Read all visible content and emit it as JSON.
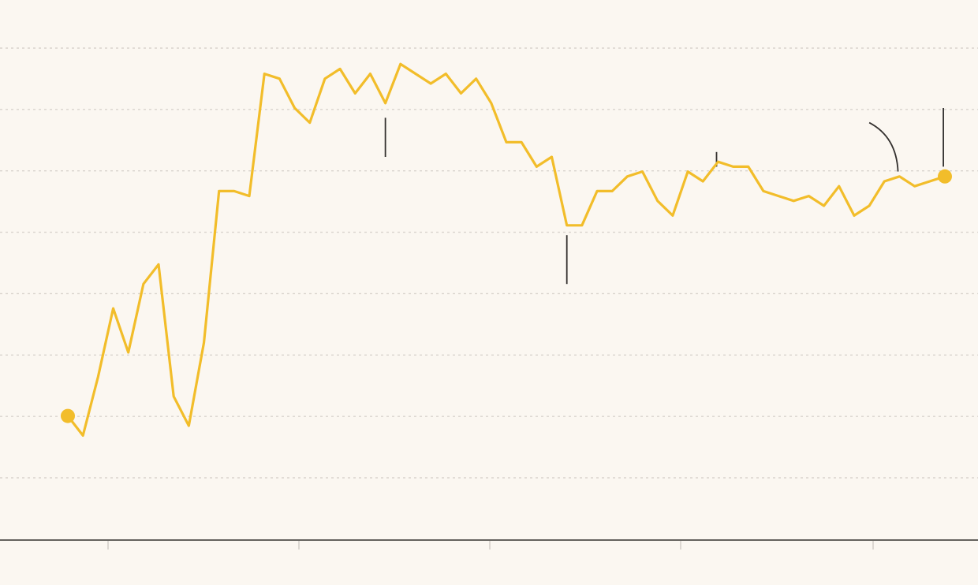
{
  "chart_data": {
    "type": "line",
    "title": "",
    "xlabel": "",
    "ylabel": "",
    "legend": "none",
    "grid": true,
    "x_tick_count": 5,
    "y_grid_count": 8,
    "colors": {
      "background": "#fbf7f1",
      "series": "#f2bd2a",
      "annotation": "#33302e",
      "grid": "#d9d4cd",
      "axis": "#33302e"
    },
    "series": [
      {
        "values": [
          2.2,
          1.8,
          3.0,
          4.4,
          3.5,
          4.9,
          5.3,
          2.6,
          2.0,
          3.7,
          6.8,
          6.8,
          6.7,
          9.2,
          9.1,
          8.5,
          8.2,
          9.1,
          9.3,
          8.8,
          9.2,
          8.6,
          9.4,
          9.2,
          9.0,
          9.2,
          8.8,
          9.1,
          8.6,
          7.8,
          7.8,
          7.3,
          7.5,
          6.1,
          6.1,
          6.8,
          6.8,
          7.1,
          7.2,
          6.6,
          6.3,
          7.2,
          7.0,
          7.4,
          7.3,
          7.3,
          6.8,
          6.7,
          6.6,
          6.7,
          6.5,
          6.9,
          6.3,
          6.5,
          7.0,
          7.1,
          6.9,
          7.0,
          7.1
        ],
        "endpoint_markers": true
      }
    ],
    "annotations": [
      {
        "type": "line",
        "x_index": 21.0,
        "y_from": 8.3,
        "y_to": 7.5
      },
      {
        "type": "line",
        "x_index": 33.0,
        "y_from": 5.9,
        "y_to": 4.9
      },
      {
        "type": "line",
        "x_index": 42.9,
        "y_from": 7.6,
        "y_to": 7.3
      },
      {
        "type": "curve",
        "x_start": 53.0,
        "y_start": 8.2,
        "x_end": 54.9,
        "y_end": 7.2
      },
      {
        "type": "line",
        "x_index": 57.9,
        "y_from": 8.5,
        "y_to": 7.3
      }
    ],
    "ylim": [
      0,
      10
    ]
  }
}
